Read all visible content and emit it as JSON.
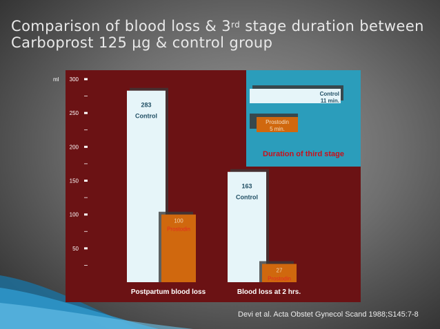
{
  "slide": {
    "title_part1": "Comparison of blood loss & 3",
    "title_sup": "rd",
    "title_part2": " stage duration between",
    "title_line2": "Carboprost 125 µg & control group",
    "citation": "Devi et al. Acta Obstet Gynecol Scand 1988;S145:7-8"
  },
  "colors": {
    "panel": "#6b1214",
    "control_bar": "#e6f5f9",
    "prostodin_bar": "#d0680e",
    "inset_bg": "#2b9dbb",
    "inset_title": "#c8101b",
    "label_teal": "#1f4e63"
  },
  "chart_data": [
    {
      "type": "bar",
      "unit_label": "ml",
      "ylim": [
        0,
        300
      ],
      "yticks": [
        50,
        100,
        150,
        200,
        250,
        300
      ],
      "categories": [
        "Postpartum blood loss",
        "Blood loss at  2 hrs."
      ],
      "series": [
        {
          "name": "Control",
          "values": [
            283,
            163
          ],
          "labels": [
            "283",
            "163"
          ]
        },
        {
          "name": "Prostodin",
          "values": [
            100,
            27
          ],
          "labels": [
            "100",
            "27"
          ]
        }
      ]
    },
    {
      "type": "bar",
      "title": "Duration of third stage",
      "orientation": "horizontal",
      "series": [
        {
          "name": "Control",
          "value": 11,
          "label": "11 min."
        },
        {
          "name": "Prostodin",
          "value": 5,
          "label": "5 min."
        }
      ]
    }
  ]
}
